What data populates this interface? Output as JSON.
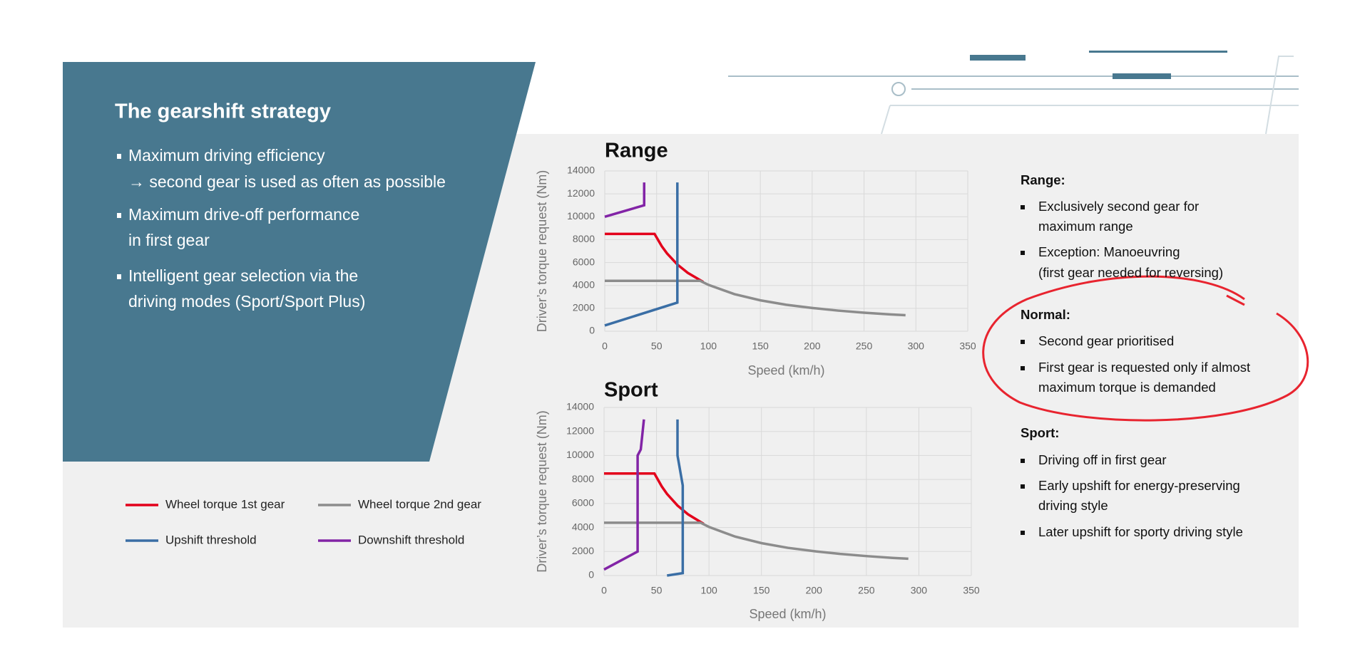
{
  "slide": {
    "title": "The gearshift strategy",
    "bullets": [
      [
        "Maximum driving efficiency",
        "→ second gear is used as often as possible"
      ],
      [
        "Maximum drive-off performance",
        "in first gear"
      ],
      [
        "Intelligent gear selection via the",
        "driving modes (Sport/Sport Plus)"
      ]
    ]
  },
  "chart_data": [
    {
      "type": "line",
      "title": "Range",
      "x_label": "Speed (km/h)",
      "y_label": "Driver’s torque request (Nm)",
      "xlim": [
        0,
        350
      ],
      "xticks": [
        0,
        50,
        100,
        150,
        200,
        250,
        300,
        350
      ],
      "ylim": [
        0,
        14000
      ],
      "yticks": [
        0,
        2000,
        4000,
        6000,
        8000,
        10000,
        12000,
        14000
      ],
      "grid": true,
      "series": [
        {
          "name": "Wheel torque 1st gear",
          "color": "#e3001b",
          "x": [
            0,
            48,
            55,
            60,
            70,
            80,
            95
          ],
          "values": [
            8500,
            8500,
            7420,
            6800,
            5830,
            5100,
            4300
          ]
        },
        {
          "name": "Wheel torque 2nd gear",
          "color": "#8c8c8c",
          "x": [
            0,
            92,
            100,
            125,
            150,
            175,
            200,
            225,
            250,
            275,
            290
          ],
          "values": [
            4400,
            4400,
            4050,
            3240,
            2700,
            2310,
            2030,
            1800,
            1620,
            1470,
            1400
          ]
        },
        {
          "name": "Upshift threshold",
          "color": "#3a6ea5",
          "x": [
            0,
            70,
            70
          ],
          "values": [
            500,
            2500,
            13000
          ]
        },
        {
          "name": "Downshift threshold",
          "color": "#8224a6",
          "x": [
            0,
            38,
            38
          ],
          "values": [
            10000,
            11000,
            13000
          ]
        }
      ]
    },
    {
      "type": "line",
      "title": "Sport",
      "x_label": "Speed (km/h)",
      "y_label": "Driver’s torque request (Nm)",
      "xlim": [
        0,
        350
      ],
      "xticks": [
        0,
        50,
        100,
        150,
        200,
        250,
        300,
        350
      ],
      "ylim": [
        0,
        14000
      ],
      "yticks": [
        0,
        2000,
        4000,
        6000,
        8000,
        10000,
        12000,
        14000
      ],
      "grid": true,
      "series": [
        {
          "color": "#e3001b",
          "x": [
            0,
            48,
            55,
            60,
            70,
            80,
            95
          ],
          "values": [
            8500,
            8500,
            7420,
            6800,
            5830,
            5100,
            4300
          ]
        },
        {
          "color": "#8c8c8c",
          "x": [
            0,
            92,
            100,
            125,
            150,
            175,
            200,
            225,
            250,
            275,
            290
          ],
          "values": [
            4400,
            4400,
            4050,
            3240,
            2700,
            2310,
            2030,
            1800,
            1620,
            1470,
            1400
          ]
        },
        {
          "color": "#3a6ea5",
          "x": [
            60,
            75,
            75,
            70,
            70
          ],
          "values": [
            0,
            200,
            7500,
            10000,
            13000
          ]
        },
        {
          "color": "#8224a6",
          "x": [
            0,
            32,
            32,
            35,
            38
          ],
          "values": [
            500,
            2000,
            10000,
            10500,
            13000
          ]
        }
      ]
    }
  ],
  "notes": [
    {
      "heading": "Range:",
      "items": [
        [
          "Exclusively second gear for",
          "maximum range"
        ],
        [
          "Exception: Manoeuvring",
          "(first gear needed for reversing)"
        ]
      ]
    },
    {
      "heading": "Normal:",
      "items": [
        [
          "Second gear prioritised"
        ],
        [
          "First gear is requested only if almost",
          "maximum torque is demanded"
        ]
      ]
    },
    {
      "heading": "Sport:",
      "items": [
        [
          "Driving off in first gear"
        ],
        [
          "Early upshift for energy-preserving",
          "driving style"
        ],
        [
          "Later upshift for sporty driving style"
        ]
      ]
    }
  ]
}
